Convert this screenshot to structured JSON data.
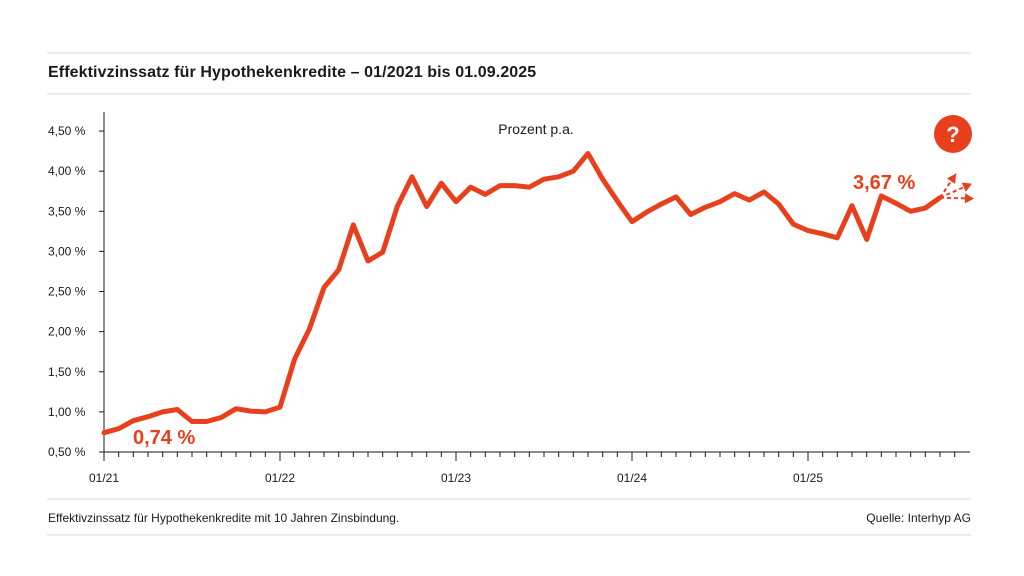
{
  "title": "Effektivzinssatz für Hypothekenkredite – 01/2021 bis 01.09.2025",
  "footer": {
    "note": "Effektivzinssatz für Hypothekenkredite mit 10 Jahren Zinsbindung.",
    "source": "Quelle: Interhyp AG"
  },
  "colors": {
    "line": "#e8401c",
    "axis": "#1a1a1a",
    "rule": "#ececec"
  },
  "icons": {
    "help": "question-mark-icon"
  },
  "help_label": "?",
  "chart_data": {
    "type": "line",
    "title": "Effektivzinssatz für Hypothekenkredite – 01/2021 bis 01.09.2025",
    "subtitle": "Prozent p.a.",
    "xlabel": "",
    "ylabel": "",
    "ylim": [
      0.5,
      4.75
    ],
    "xlim": [
      0,
      57
    ],
    "y_ticks": [
      0.5,
      1.0,
      1.5,
      2.0,
      2.5,
      3.0,
      3.5,
      4.0,
      4.5
    ],
    "y_tick_labels": [
      "0,50 %",
      "1,00 %",
      "1,50 %",
      "2,00 %",
      "2,50 %",
      "3,00 %",
      "3,50 %",
      "4,00 %",
      "4,50 %"
    ],
    "x_ticks": [
      0,
      12,
      24,
      36,
      48
    ],
    "x_tick_labels": [
      "01/21",
      "01/22",
      "01/23",
      "01/24",
      "01/25"
    ],
    "annotations": [
      {
        "label": "0,74 %",
        "value": 0.74
      },
      {
        "label": "3,67 %",
        "value": 3.67
      }
    ],
    "series": [
      {
        "name": "Effektivzinssatz",
        "x": [
          0,
          1,
          2,
          3,
          4,
          5,
          6,
          7,
          8,
          9,
          10,
          11,
          12,
          13,
          14,
          15,
          16,
          17,
          18,
          19,
          20,
          21,
          22,
          23,
          24,
          25,
          26,
          27,
          28,
          29,
          30,
          31,
          32,
          33,
          34,
          35,
          36,
          37,
          38,
          39,
          40,
          41,
          42,
          43,
          44,
          45,
          46,
          47,
          48,
          49,
          50,
          51,
          52,
          53,
          54,
          55,
          56,
          57
        ],
        "values": [
          0.74,
          0.79,
          0.89,
          0.94,
          1.0,
          1.03,
          0.88,
          0.88,
          0.93,
          1.04,
          1.01,
          1.0,
          1.06,
          1.66,
          2.03,
          2.55,
          2.77,
          3.33,
          2.88,
          2.99,
          3.56,
          3.93,
          3.56,
          3.85,
          3.62,
          3.8,
          3.71,
          3.82,
          3.82,
          3.8,
          3.9,
          3.93,
          4.0,
          4.22,
          3.9,
          3.63,
          3.37,
          3.49,
          3.59,
          3.68,
          3.46,
          3.55,
          3.62,
          3.72,
          3.64,
          3.74,
          3.59,
          3.34,
          3.26,
          3.22,
          3.17,
          3.57,
          3.15,
          3.69,
          3.6,
          3.5,
          3.54,
          3.67
        ]
      }
    ],
    "forecast_arrows": 3
  }
}
